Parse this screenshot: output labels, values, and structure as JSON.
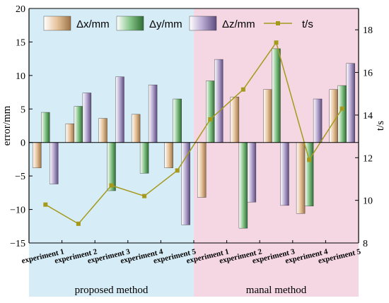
{
  "chart_data": {
    "type": "bar",
    "categories": [
      "experiment 1",
      "experiment 2",
      "experiment 3",
      "experiment 4",
      "experiment 5",
      "experiment 1",
      "experiment 2",
      "experiment 3",
      "experiment 4",
      "experiment 5"
    ],
    "groups": [
      {
        "label": "proposed method",
        "from": 0,
        "to": 4,
        "color": "#d6ecf6"
      },
      {
        "label": "manal method",
        "from": 5,
        "to": 9,
        "color": "#f5d6e3"
      }
    ],
    "series": [
      {
        "name": "Δx/mm",
        "axis": "left",
        "kind": "bar",
        "color": "#c9a072",
        "values": [
          -3.8,
          2.8,
          3.6,
          4.2,
          -3.8,
          -8.2,
          6.8,
          7.9,
          -10.6,
          7.9
        ]
      },
      {
        "name": "Δy/mm",
        "axis": "left",
        "kind": "bar",
        "color": "#5a9a5e",
        "values": [
          4.5,
          5.4,
          -7.2,
          -4.6,
          6.5,
          9.2,
          -12.8,
          14.0,
          -9.5,
          8.5
        ]
      },
      {
        "name": "Δz/mm",
        "axis": "left",
        "kind": "bar",
        "color": "#8c7ba8",
        "values": [
          -6.2,
          7.4,
          9.8,
          8.6,
          -12.3,
          12.4,
          -8.9,
          -9.4,
          6.5,
          11.8
        ]
      },
      {
        "name": "t/s",
        "axis": "right",
        "kind": "line",
        "color": "#a59a1c",
        "values": [
          9.8,
          8.9,
          10.7,
          10.2,
          11.4,
          13.8,
          15.2,
          17.4,
          11.9,
          14.3
        ]
      }
    ],
    "ylabel": "error/mm",
    "y2label": "t/s",
    "ylim": [
      -15,
      20
    ],
    "yticks": [
      -15,
      -10,
      -5,
      0,
      5,
      10,
      15,
      20
    ],
    "y2lim": [
      8,
      19
    ],
    "y2ticks": [
      8,
      10,
      12,
      14,
      16,
      18
    ],
    "legend_position": "top"
  }
}
